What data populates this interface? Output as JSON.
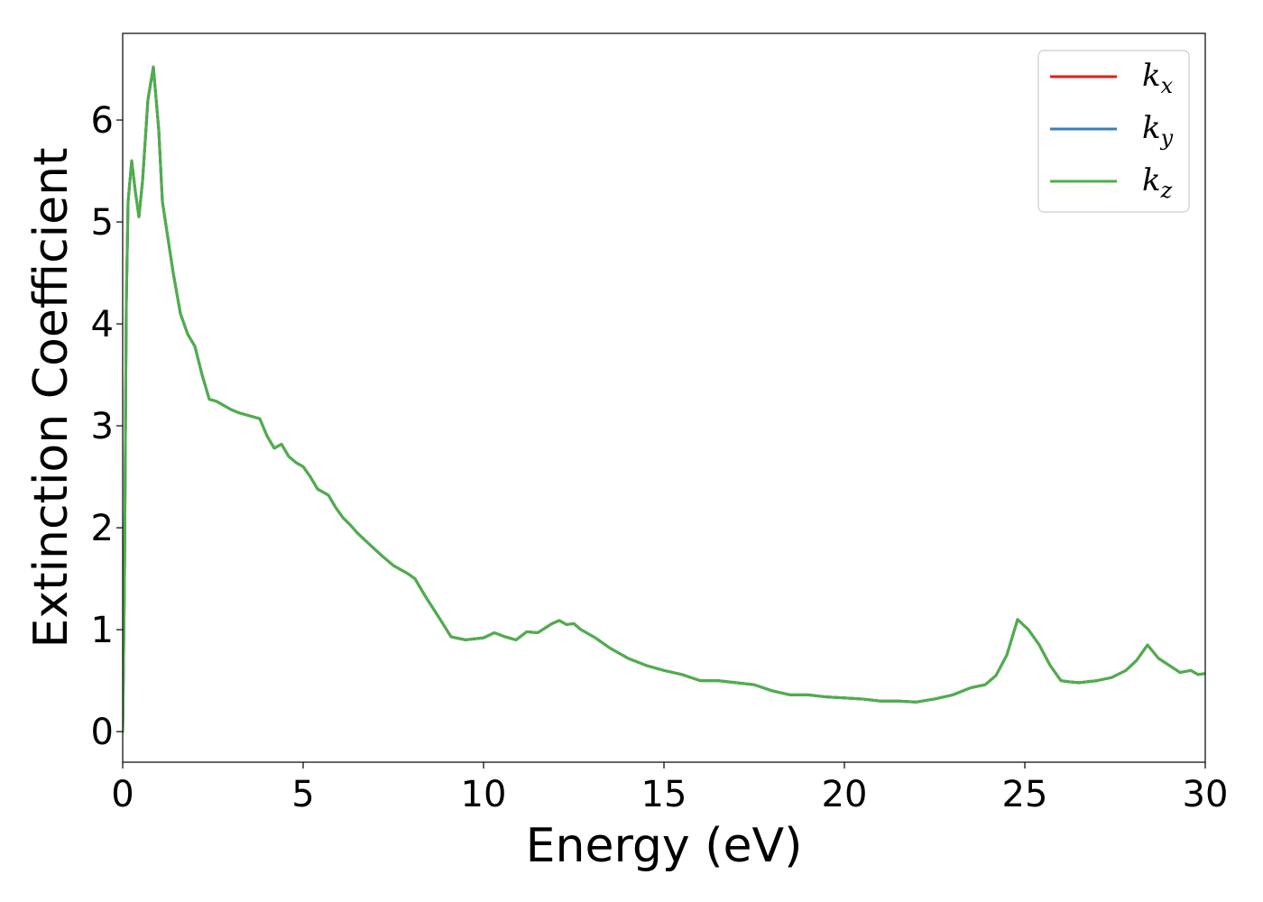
{
  "chart_data": {
    "type": "line",
    "title": "",
    "xlabel": "Energy (eV)",
    "ylabel": "Extinction Coefficient",
    "xlim": [
      0,
      30
    ],
    "ylim": [
      -0.3,
      6.85
    ],
    "xticks": [
      "0",
      "5",
      "10",
      "15",
      "20",
      "25",
      "30"
    ],
    "yticks": [
      "0",
      "1",
      "2",
      "3",
      "4",
      "5",
      "6"
    ],
    "grid": false,
    "legend_position": "top-right",
    "legend": [
      {
        "base": "k",
        "sub": "x",
        "color": "#e41a1c"
      },
      {
        "base": "k",
        "sub": "y",
        "color": "#377eb8"
      },
      {
        "base": "k",
        "sub": "z",
        "color": "#4daf4a"
      }
    ],
    "x": [
      0,
      0.05,
      0.1,
      0.15,
      0.25,
      0.35,
      0.45,
      0.55,
      0.7,
      0.85,
      1.0,
      1.1,
      1.25,
      1.4,
      1.6,
      1.8,
      2.0,
      2.2,
      2.4,
      2.6,
      2.8,
      3.0,
      3.2,
      3.5,
      3.8,
      4.0,
      4.2,
      4.4,
      4.6,
      4.8,
      5.0,
      5.2,
      5.4,
      5.7,
      5.9,
      6.1,
      6.3,
      6.5,
      6.8,
      7.2,
      7.5,
      7.9,
      8.1,
      8.4,
      8.8,
      9.1,
      9.5,
      10.0,
      10.3,
      10.6,
      10.9,
      11.2,
      11.5,
      11.9,
      12.1,
      12.3,
      12.5,
      12.7,
      13.1,
      13.5,
      14.0,
      14.5,
      15.0,
      15.5,
      16.0,
      16.5,
      17.0,
      17.5,
      18.0,
      18.5,
      19.0,
      19.5,
      20.0,
      20.5,
      21.0,
      21.5,
      22.0,
      22.5,
      23.0,
      23.5,
      23.9,
      24.2,
      24.5,
      24.8,
      25.1,
      25.4,
      25.7,
      26.0,
      26.2,
      26.5,
      27.0,
      27.4,
      27.8,
      28.1,
      28.4,
      28.7,
      29.0,
      29.3,
      29.6,
      29.8,
      30.0
    ],
    "series": [
      {
        "name": "k_x",
        "color": "#e41a1c",
        "values": [
          0,
          1.5,
          4.2,
          5.2,
          5.6,
          5.3,
          5.05,
          5.4,
          6.2,
          6.52,
          5.9,
          5.2,
          4.85,
          4.5,
          4.1,
          3.9,
          3.78,
          3.5,
          3.26,
          3.24,
          3.2,
          3.16,
          3.13,
          3.1,
          3.07,
          2.9,
          2.78,
          2.82,
          2.7,
          2.64,
          2.6,
          2.5,
          2.38,
          2.32,
          2.2,
          2.1,
          2.03,
          1.95,
          1.85,
          1.72,
          1.63,
          1.55,
          1.5,
          1.32,
          1.1,
          0.93,
          0.9,
          0.92,
          0.97,
          0.93,
          0.9,
          0.98,
          0.97,
          1.06,
          1.09,
          1.05,
          1.06,
          1.0,
          0.92,
          0.82,
          0.72,
          0.65,
          0.6,
          0.56,
          0.5,
          0.5,
          0.48,
          0.46,
          0.4,
          0.36,
          0.36,
          0.34,
          0.33,
          0.32,
          0.3,
          0.3,
          0.29,
          0.32,
          0.36,
          0.43,
          0.46,
          0.55,
          0.75,
          1.1,
          1.0,
          0.85,
          0.65,
          0.5,
          0.49,
          0.48,
          0.5,
          0.53,
          0.6,
          0.7,
          0.85,
          0.72,
          0.65,
          0.58,
          0.6,
          0.56,
          0.57
        ]
      },
      {
        "name": "k_y",
        "color": "#377eb8",
        "values": [
          0,
          1.5,
          4.2,
          5.2,
          5.6,
          5.3,
          5.05,
          5.4,
          6.2,
          6.52,
          5.9,
          5.2,
          4.85,
          4.5,
          4.1,
          3.9,
          3.78,
          3.5,
          3.26,
          3.24,
          3.2,
          3.16,
          3.13,
          3.1,
          3.07,
          2.9,
          2.78,
          2.82,
          2.7,
          2.64,
          2.6,
          2.5,
          2.38,
          2.32,
          2.2,
          2.1,
          2.03,
          1.95,
          1.85,
          1.72,
          1.63,
          1.55,
          1.5,
          1.32,
          1.1,
          0.93,
          0.9,
          0.92,
          0.97,
          0.93,
          0.9,
          0.98,
          0.97,
          1.06,
          1.09,
          1.05,
          1.06,
          1.0,
          0.92,
          0.82,
          0.72,
          0.65,
          0.6,
          0.56,
          0.5,
          0.5,
          0.48,
          0.46,
          0.4,
          0.36,
          0.36,
          0.34,
          0.33,
          0.32,
          0.3,
          0.3,
          0.29,
          0.32,
          0.36,
          0.43,
          0.46,
          0.55,
          0.75,
          1.1,
          1.0,
          0.85,
          0.65,
          0.5,
          0.49,
          0.48,
          0.5,
          0.53,
          0.6,
          0.7,
          0.85,
          0.72,
          0.65,
          0.58,
          0.6,
          0.56,
          0.57
        ]
      },
      {
        "name": "k_z",
        "color": "#4daf4a",
        "values": [
          0,
          1.5,
          4.2,
          5.2,
          5.6,
          5.3,
          5.05,
          5.4,
          6.2,
          6.52,
          5.9,
          5.2,
          4.85,
          4.5,
          4.1,
          3.9,
          3.78,
          3.5,
          3.26,
          3.24,
          3.2,
          3.16,
          3.13,
          3.1,
          3.07,
          2.9,
          2.78,
          2.82,
          2.7,
          2.64,
          2.6,
          2.5,
          2.38,
          2.32,
          2.2,
          2.1,
          2.03,
          1.95,
          1.85,
          1.72,
          1.63,
          1.55,
          1.5,
          1.32,
          1.1,
          0.93,
          0.9,
          0.92,
          0.97,
          0.93,
          0.9,
          0.98,
          0.97,
          1.06,
          1.09,
          1.05,
          1.06,
          1.0,
          0.92,
          0.82,
          0.72,
          0.65,
          0.6,
          0.56,
          0.5,
          0.5,
          0.48,
          0.46,
          0.4,
          0.36,
          0.36,
          0.34,
          0.33,
          0.32,
          0.3,
          0.3,
          0.29,
          0.32,
          0.36,
          0.43,
          0.46,
          0.55,
          0.75,
          1.1,
          1.0,
          0.85,
          0.65,
          0.5,
          0.49,
          0.48,
          0.5,
          0.53,
          0.6,
          0.7,
          0.85,
          0.72,
          0.65,
          0.58,
          0.6,
          0.56,
          0.57
        ]
      }
    ]
  }
}
